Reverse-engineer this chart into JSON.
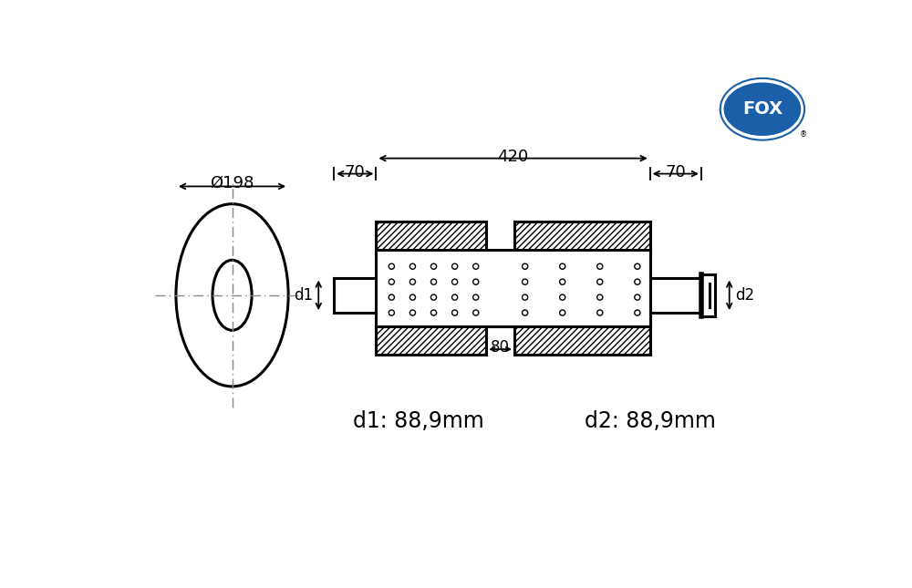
{
  "bg_color": "#ffffff",
  "line_color": "#000000",
  "dash_color": "#888888",
  "title_d1": "d1: 88,9mm",
  "title_d2": "d2: 88,9mm",
  "dim_phi": "Ø198",
  "dim_len": "420",
  "dim_stub_left": "70",
  "dim_stub_right": "70",
  "dim_chamber": "80",
  "label_d1": "d1",
  "label_d2": "d2",
  "fox_text": "FOX",
  "font_size_title": 17,
  "font_size_dim": 13,
  "font_size_label": 12
}
